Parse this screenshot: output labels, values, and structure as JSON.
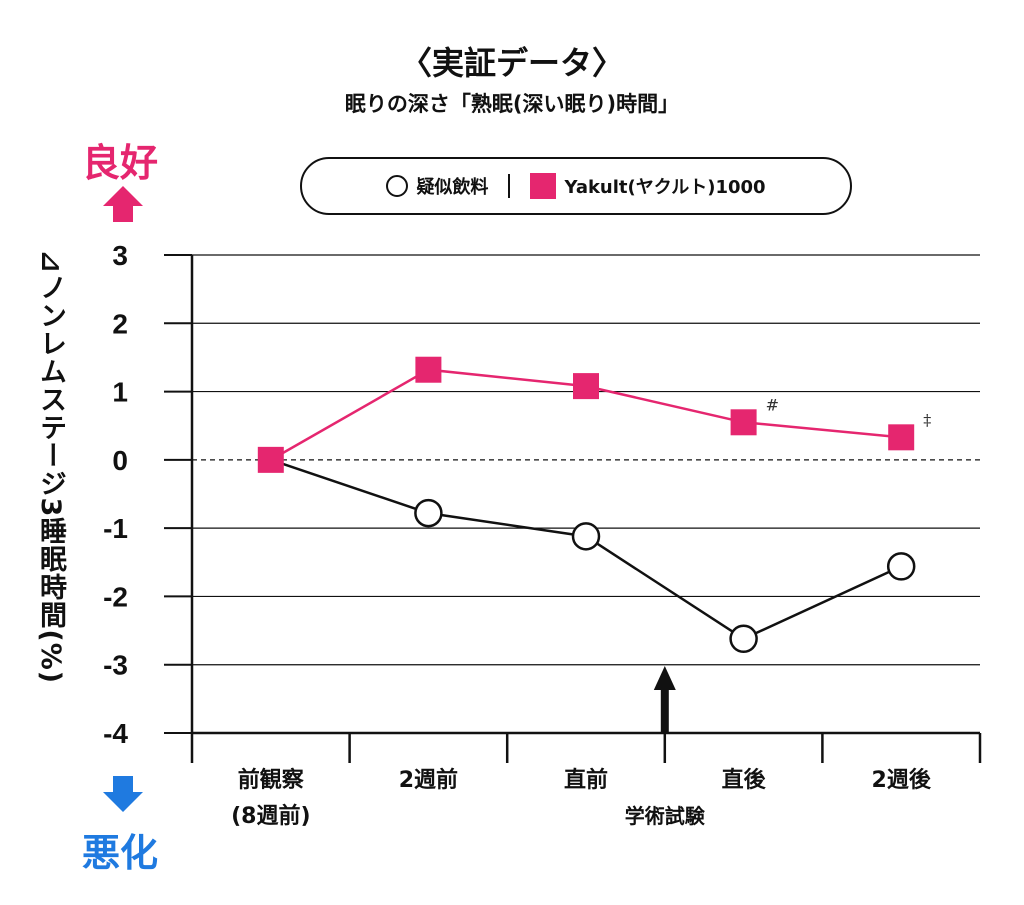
{
  "title": "〈実証データ〉",
  "subtitle": "眠りの深さ「熟眠(深い眠り)時間」",
  "good_label": "良好",
  "bad_label": "悪化",
  "colors": {
    "yakult": "#e5266f",
    "placebo": "#111111",
    "good": "#e5266f",
    "bad": "#1f7ae0"
  },
  "legend": {
    "placebo": "疑似飲料",
    "yakult": "Yakult(ヤクルト)1000"
  },
  "chart_data": {
    "type": "line",
    "ylabel": "⊿ノンレムステージ3睡眠時間(%)",
    "xlabel": "学術試験",
    "ylim": [
      -4,
      3
    ],
    "yticks": [
      "3",
      "2",
      "1",
      "0",
      "-1",
      "-2",
      "-3",
      "-4"
    ],
    "categories": [
      "前観察",
      "2週前",
      "直前",
      "直後",
      "2週後"
    ],
    "category_sub": [
      "(8週前)",
      "",
      "",
      "",
      ""
    ],
    "exam_marker": "arrow between 直前 and 直後",
    "zero_line": "dashed",
    "series": [
      {
        "name": "疑似飲料",
        "marker": "circle",
        "values": [
          0,
          -0.78,
          -1.12,
          -2.62,
          -1.56
        ]
      },
      {
        "name": "Yakult(ヤクルト)1000",
        "marker": "square",
        "values": [
          0,
          1.32,
          1.08,
          0.55,
          0.33
        ]
      }
    ],
    "annotations": [
      {
        "series": 1,
        "index": 3,
        "text": "#"
      },
      {
        "series": 1,
        "index": 4,
        "text": "‡"
      }
    ]
  }
}
